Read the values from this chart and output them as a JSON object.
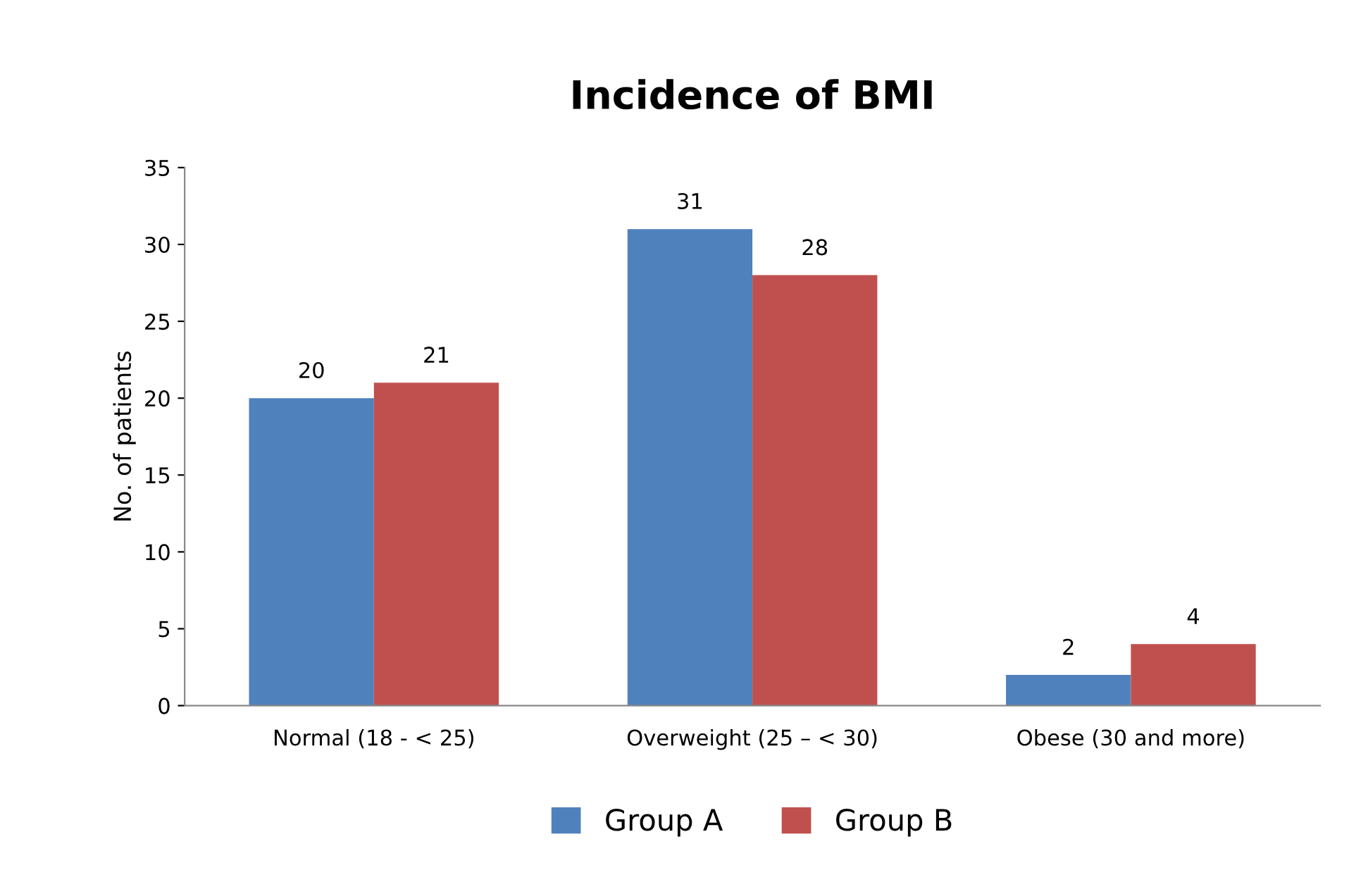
{
  "chart_data": {
    "type": "bar",
    "title": "Incidence of BMI",
    "ylabel": "No. of patients",
    "categories": [
      "Normal (18 - < 25)",
      "Overweight (25 – < 30)",
      "Obese (30 and more)"
    ],
    "series": [
      {
        "name": "Group A",
        "color": "#4f81bd",
        "values": [
          20,
          31,
          2
        ]
      },
      {
        "name": "Group B",
        "color": "#c0504d",
        "values": [
          21,
          28,
          4
        ]
      }
    ],
    "ylim": [
      0,
      35
    ],
    "yticks": [
      0,
      5,
      10,
      15,
      20,
      25,
      30,
      35
    ],
    "grid": false,
    "legend": "bottom",
    "data_labels": true
  }
}
